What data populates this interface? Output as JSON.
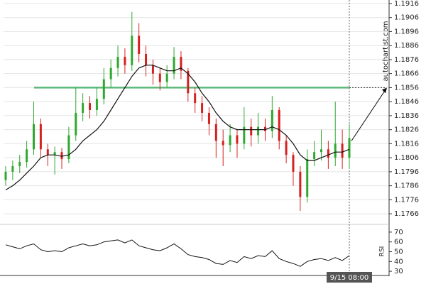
{
  "chart_data": {
    "type": "candlestick",
    "watermark": "autochartist.com",
    "categories": [
      null,
      null,
      null,
      null,
      null,
      null,
      null,
      null,
      null,
      null,
      null,
      null,
      null,
      null,
      null,
      null,
      null,
      null,
      null,
      null,
      null,
      null,
      null,
      null,
      null,
      null,
      null,
      null,
      null,
      null,
      null,
      null,
      null,
      null,
      null,
      null,
      null,
      null,
      null,
      null,
      null,
      null,
      null,
      null,
      null,
      null,
      null,
      null,
      null,
      "9/15 08:00"
    ],
    "open": [
      1.179,
      1.1796,
      1.18,
      1.1803,
      1.1812,
      1.183,
      1.1812,
      1.1808,
      1.181,
      1.1805,
      1.1822,
      1.1838,
      1.1845,
      1.184,
      1.1848,
      1.1862,
      1.187,
      1.1878,
      1.1872,
      1.1893,
      1.188,
      1.1872,
      1.1866,
      1.186,
      1.1866,
      1.1878,
      1.1868,
      1.1852,
      1.1845,
      1.1838,
      1.183,
      1.1818,
      1.1815,
      1.1822,
      1.1816,
      1.1828,
      1.1822,
      1.1828,
      1.1825,
      1.184,
      1.1818,
      1.1808,
      1.1796,
      1.1778,
      1.1805,
      1.181,
      1.1812,
      1.1806,
      1.1816,
      1.1806
    ],
    "high": [
      1.18,
      1.1804,
      1.1808,
      1.1818,
      1.1846,
      1.1834,
      1.1816,
      1.1814,
      1.1813,
      1.1828,
      1.1856,
      1.1852,
      1.185,
      1.1856,
      1.187,
      1.1876,
      1.1886,
      1.1884,
      1.191,
      1.1902,
      1.1886,
      1.1876,
      1.187,
      1.1872,
      1.1885,
      1.1882,
      1.187,
      1.1856,
      1.185,
      1.1842,
      1.1834,
      1.1826,
      1.183,
      1.1826,
      1.1842,
      1.1834,
      1.1838,
      1.1834,
      1.185,
      1.1842,
      1.1822,
      1.181,
      1.18,
      1.1812,
      1.1818,
      1.1826,
      1.1818,
      1.1846,
      1.1826,
      1.183
    ],
    "low": [
      1.1786,
      1.179,
      1.1795,
      1.1799,
      1.1808,
      1.1806,
      1.18,
      1.1794,
      1.1798,
      1.1802,
      1.1818,
      1.1832,
      1.1834,
      1.1836,
      1.1844,
      1.1856,
      1.1864,
      1.1866,
      1.1868,
      1.1874,
      1.1864,
      1.1858,
      1.1854,
      1.1856,
      1.1862,
      1.1862,
      1.1846,
      1.1838,
      1.1832,
      1.1822,
      1.1806,
      1.18,
      1.181,
      1.1806,
      1.1812,
      1.1814,
      1.1816,
      1.1818,
      1.182,
      1.1812,
      1.1802,
      1.1786,
      1.1768,
      1.1774,
      1.18,
      1.1804,
      1.1798,
      1.18,
      1.1798,
      1.1798
    ],
    "close": [
      1.1796,
      1.18,
      1.1803,
      1.1812,
      1.183,
      1.1812,
      1.1808,
      1.181,
      1.1805,
      1.1822,
      1.1838,
      1.1845,
      1.184,
      1.1848,
      1.1862,
      1.187,
      1.1878,
      1.1872,
      1.1893,
      1.188,
      1.1872,
      1.1866,
      1.186,
      1.1866,
      1.1878,
      1.1868,
      1.1852,
      1.1845,
      1.1838,
      1.183,
      1.1818,
      1.1815,
      1.1822,
      1.1816,
      1.1828,
      1.1822,
      1.1828,
      1.1825,
      1.184,
      1.1818,
      1.1808,
      1.1796,
      1.1778,
      1.1805,
      1.181,
      1.1812,
      1.1806,
      1.1816,
      1.1806,
      1.182
    ],
    "up_color": "#2ea82e",
    "down_color": "#d62020",
    "moving_average": [
      1.1783,
      1.1786,
      1.179,
      1.1795,
      1.18,
      1.1806,
      1.1808,
      1.1808,
      1.1807,
      1.1808,
      1.1812,
      1.1818,
      1.1822,
      1.1826,
      1.1832,
      1.184,
      1.1848,
      1.1856,
      1.1864,
      1.187,
      1.1872,
      1.1872,
      1.187,
      1.1868,
      1.1868,
      1.187,
      1.1866,
      1.186,
      1.1852,
      1.1846,
      1.1838,
      1.1832,
      1.1828,
      1.1826,
      1.1826,
      1.1826,
      1.1826,
      1.1826,
      1.1828,
      1.1826,
      1.1822,
      1.1816,
      1.1808,
      1.1804,
      1.1804,
      1.1806,
      1.1808,
      1.181,
      1.181,
      1.1812
    ],
    "level": 1.1856,
    "level_color": "#5cb87a",
    "forecast_from": 1.1818,
    "ylim": [
      1.1762,
      1.1918
    ],
    "yticks": [
      1.1766,
      1.1776,
      1.1786,
      1.1796,
      1.1806,
      1.1816,
      1.1826,
      1.1836,
      1.1846,
      1.1856,
      1.1866,
      1.1876,
      1.1886,
      1.1896,
      1.1906,
      1.1916
    ],
    "grid": true,
    "rsi": {
      "label": "RSI",
      "values": [
        57,
        55,
        53,
        56,
        58,
        52,
        50,
        51,
        50,
        54,
        56,
        58,
        56,
        57,
        60,
        61,
        62,
        59,
        62,
        56,
        54,
        52,
        51,
        54,
        58,
        53,
        47,
        45,
        44,
        42,
        38,
        37,
        41,
        39,
        45,
        43,
        46,
        45,
        51,
        43,
        40,
        38,
        35,
        40,
        42,
        43,
        41,
        44,
        41,
        46
      ],
      "ylim": [
        25,
        75
      ],
      "yticks": [
        30,
        40,
        50,
        60,
        70
      ]
    }
  }
}
